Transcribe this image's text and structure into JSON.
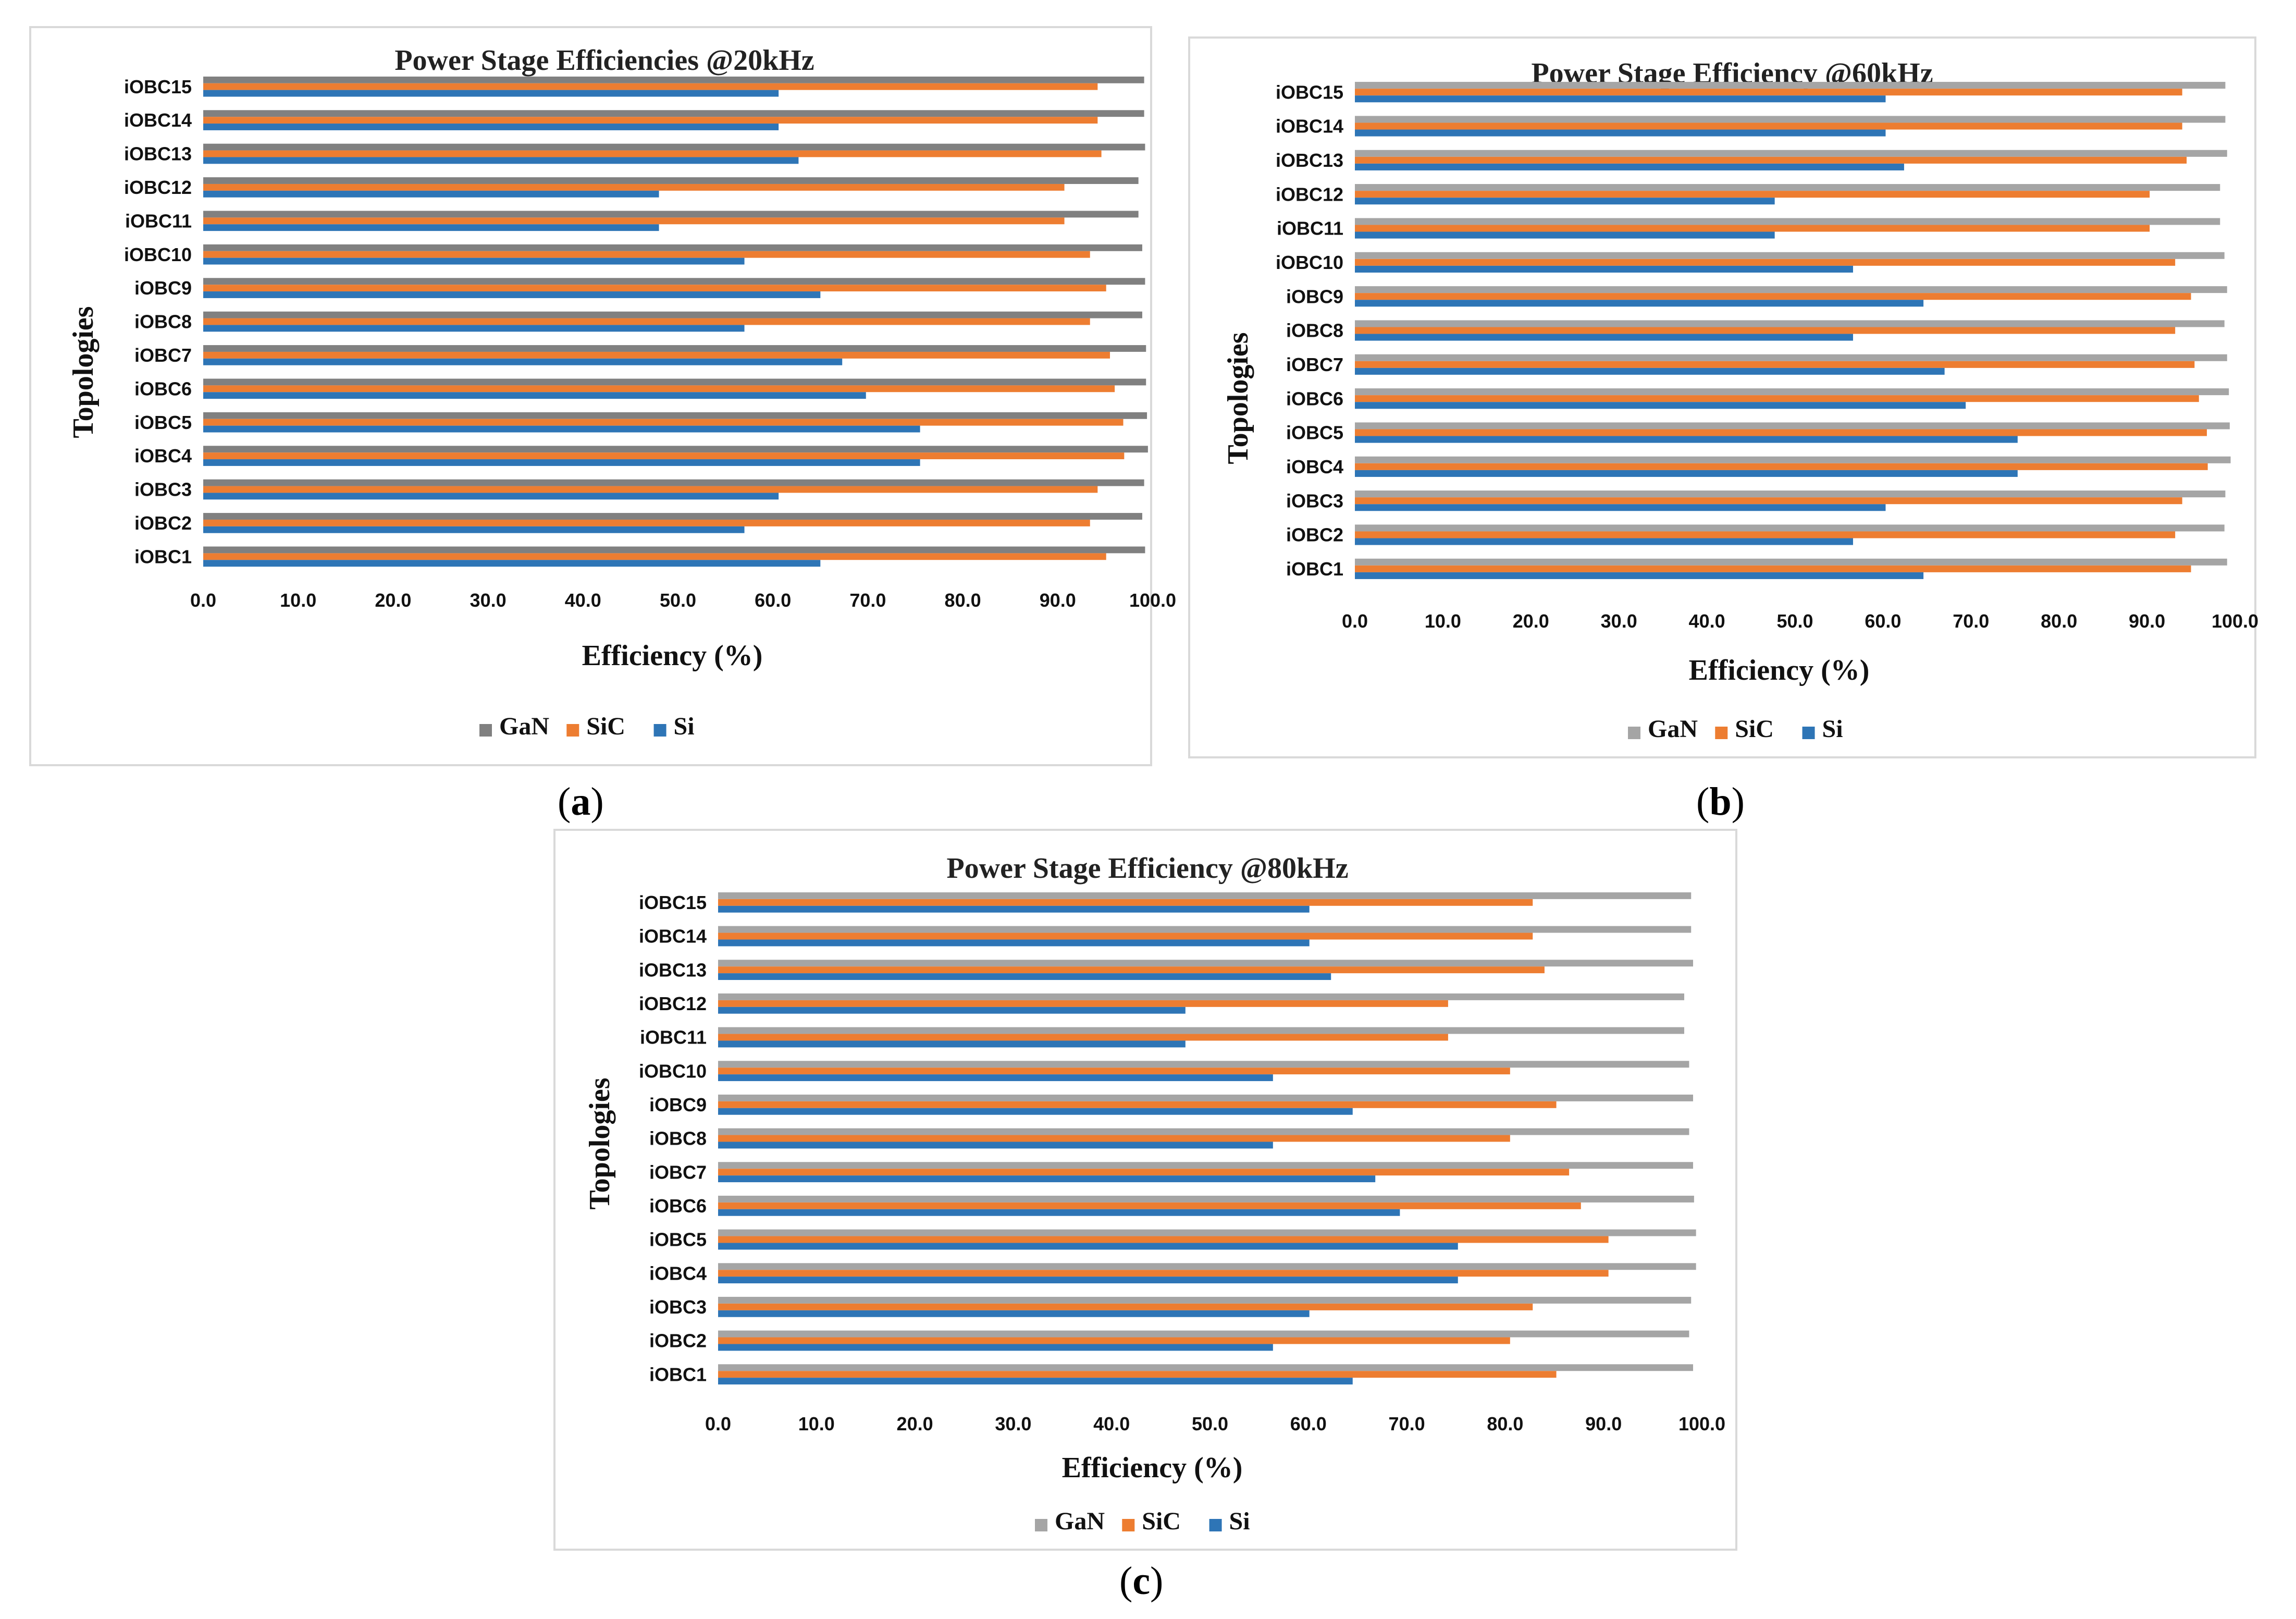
{
  "figure_labels": [
    "a",
    "b",
    "c"
  ],
  "chart_data": [
    {
      "type": "bar",
      "orientation": "horizontal",
      "title": "Power Stage Efficiencies @20kHz",
      "xlabel": "Efficiency (%)",
      "ylabel": "Topologies",
      "xlim": [
        0,
        100
      ],
      "xticks": [
        "0.0",
        "10.0",
        "20.0",
        "30.0",
        "40.0",
        "50.0",
        "60.0",
        "70.0",
        "80.0",
        "90.0",
        "100.0"
      ],
      "categories": [
        "iOBC1",
        "iOBC2",
        "iOBC3",
        "iOBC4",
        "iOBC5",
        "iOBC6",
        "iOBC7",
        "iOBC8",
        "iOBC9",
        "iOBC10",
        "iOBC11",
        "iOBC12",
        "iOBC13",
        "iOBC14",
        "iOBC15"
      ],
      "series": [
        {
          "name": "GaN",
          "color": "#808080",
          "values": [
            99.2,
            98.9,
            99.1,
            99.5,
            99.4,
            99.3,
            99.3,
            98.9,
            99.2,
            98.9,
            98.5,
            98.5,
            99.2,
            99.1,
            99.1
          ]
        },
        {
          "name": "SiC",
          "color": "#ed7d31",
          "values": [
            95.1,
            93.4,
            94.2,
            97.0,
            96.9,
            96.0,
            95.5,
            93.4,
            95.1,
            93.4,
            90.7,
            90.7,
            94.6,
            94.2,
            94.2
          ]
        },
        {
          "name": "Si",
          "color": "#2e75b6",
          "values": [
            65.0,
            57.0,
            60.6,
            75.5,
            75.5,
            69.8,
            67.3,
            57.0,
            65.0,
            57.0,
            48.0,
            48.0,
            62.7,
            60.6,
            60.6
          ]
        }
      ],
      "legend": "bottom",
      "grid": false
    },
    {
      "type": "bar",
      "orientation": "horizontal",
      "title": "Power Stage Efficiency @60kHz",
      "xlabel": "Efficiency (%)",
      "ylabel": "Topologies",
      "xlim": [
        0,
        100
      ],
      "xticks": [
        "0.0",
        "10.0",
        "20.0",
        "30.0",
        "40.0",
        "50.0",
        "60.0",
        "70.0",
        "80.0",
        "90.0",
        "100.0"
      ],
      "categories": [
        "iOBC1",
        "iOBC2",
        "iOBC3",
        "iOBC4",
        "iOBC5",
        "iOBC6",
        "iOBC7",
        "iOBC8",
        "iOBC9",
        "iOBC10",
        "iOBC11",
        "iOBC12",
        "iOBC13",
        "iOBC14",
        "iOBC15"
      ],
      "series": [
        {
          "name": "GaN",
          "color": "#a5a5a5",
          "values": [
            99.1,
            98.8,
            98.9,
            99.5,
            99.4,
            99.3,
            99.1,
            98.8,
            99.1,
            98.8,
            98.3,
            98.3,
            99.1,
            98.9,
            98.9
          ]
        },
        {
          "name": "SiC",
          "color": "#ed7d31",
          "values": [
            95.0,
            93.2,
            94.0,
            96.9,
            96.8,
            95.9,
            95.4,
            93.2,
            95.0,
            93.2,
            90.3,
            90.3,
            94.5,
            94.0,
            94.0
          ]
        },
        {
          "name": "Si",
          "color": "#2e75b6",
          "values": [
            64.6,
            56.6,
            60.3,
            75.3,
            75.3,
            69.4,
            67.0,
            56.6,
            64.6,
            56.6,
            47.7,
            47.7,
            62.4,
            60.3,
            60.3
          ]
        }
      ],
      "legend": "bottom",
      "grid": false
    },
    {
      "type": "bar",
      "orientation": "horizontal",
      "title": "Power Stage Efficiency @80kHz",
      "xlabel": "Efficiency (%)",
      "ylabel": "Topologies",
      "xlim": [
        0,
        100
      ],
      "xticks": [
        "0.0",
        "10.0",
        "20.0",
        "30.0",
        "40.0",
        "50.0",
        "60.0",
        "70.0",
        "80.0",
        "90.0",
        "100.0"
      ],
      "categories": [
        "iOBC1",
        "iOBC2",
        "iOBC3",
        "iOBC4",
        "iOBC5",
        "iOBC6",
        "iOBC7",
        "iOBC8",
        "iOBC9",
        "iOBC10",
        "iOBC11",
        "iOBC12",
        "iOBC13",
        "iOBC14",
        "iOBC15"
      ],
      "series": [
        {
          "name": "GaN",
          "color": "#a5a5a5",
          "values": [
            99.1,
            98.7,
            98.9,
            99.4,
            99.4,
            99.2,
            99.1,
            98.7,
            99.1,
            98.7,
            98.2,
            98.2,
            99.1,
            98.9,
            98.9
          ]
        },
        {
          "name": "SiC",
          "color": "#ed7d31",
          "values": [
            85.2,
            80.5,
            82.8,
            90.5,
            90.5,
            87.7,
            86.5,
            80.5,
            85.2,
            80.5,
            74.2,
            74.2,
            84.0,
            82.8,
            82.8
          ]
        },
        {
          "name": "Si",
          "color": "#2e75b6",
          "values": [
            64.5,
            56.4,
            60.1,
            75.2,
            75.2,
            69.3,
            66.8,
            56.4,
            64.5,
            56.4,
            47.5,
            47.5,
            62.3,
            60.1,
            60.1
          ]
        }
      ],
      "legend": "bottom",
      "grid": false
    }
  ]
}
